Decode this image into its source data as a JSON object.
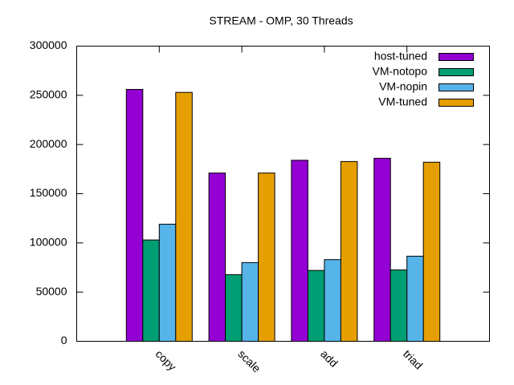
{
  "chart_data": {
    "type": "bar",
    "title": "STREAM - OMP, 30 Threads",
    "categories": [
      "copy",
      "scale",
      "add",
      "triad"
    ],
    "series": [
      {
        "name": "host-tuned",
        "color": "#9400d3",
        "values": [
          256000,
          171000,
          184000,
          186000
        ]
      },
      {
        "name": "VM-notopo",
        "color": "#009e73",
        "values": [
          103000,
          67700,
          72000,
          72500
        ]
      },
      {
        "name": "VM-nopin",
        "color": "#56b4e9",
        "values": [
          119000,
          80000,
          83000,
          86500
        ]
      },
      {
        "name": "VM-tuned",
        "color": "#e69f00",
        "values": [
          253000,
          171000,
          182700,
          182000
        ]
      }
    ],
    "ylim": [
      0,
      300000
    ],
    "yticks": [
      0,
      50000,
      100000,
      150000,
      200000,
      250000,
      300000
    ],
    "legend": "top-right"
  }
}
